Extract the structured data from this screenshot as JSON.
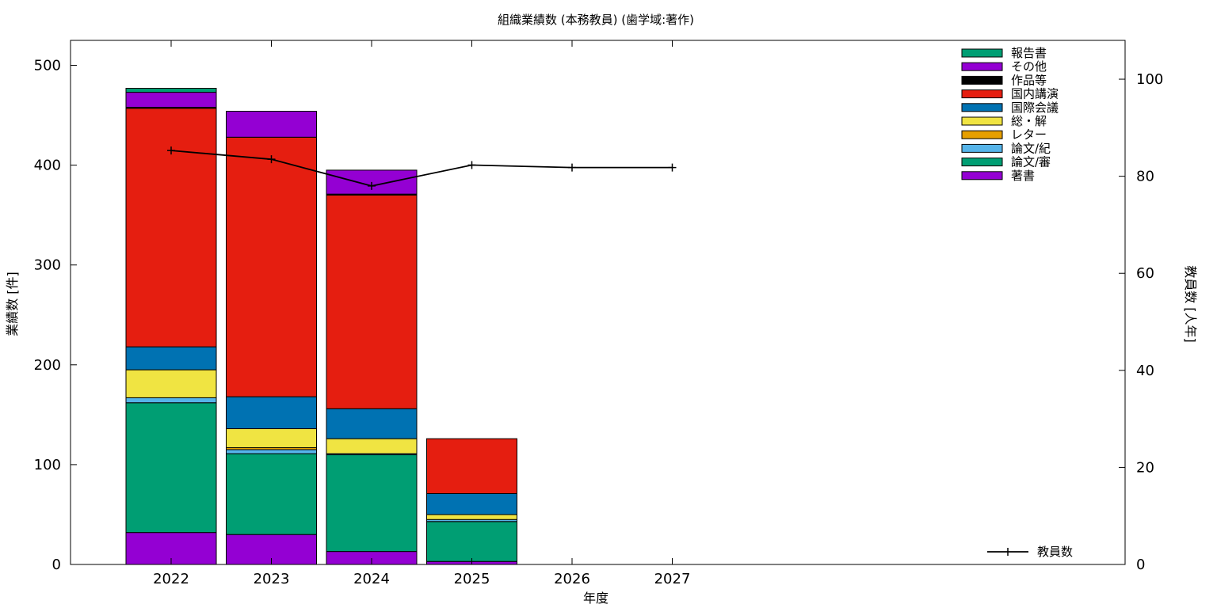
{
  "chart_data": {
    "type": "bar",
    "title": "組織業績数 (本務教員) (歯学域:著作)",
    "xlabel": "年度",
    "ylabel": "業績数 [件]",
    "y2label": "教員数 [人年]",
    "categories": [
      "2022",
      "2023",
      "2024",
      "2025",
      "2026",
      "2027"
    ],
    "ylim": [
      0,
      525
    ],
    "y2lim": [
      0,
      108
    ],
    "yticks": [
      0,
      100,
      200,
      300,
      400,
      500
    ],
    "y2ticks": [
      0,
      20,
      40,
      60,
      80,
      100
    ],
    "stacked": true,
    "series": [
      {
        "name": "著書",
        "color": "#9400d3",
        "values": [
          32,
          30,
          13,
          3,
          null,
          null
        ]
      },
      {
        "name": "論文/審",
        "color": "#009e73",
        "values": [
          130,
          81,
          97,
          40,
          null,
          null
        ]
      },
      {
        "name": "論文/紀",
        "color": "#56b4e9",
        "values": [
          5,
          4,
          1,
          2,
          null,
          null
        ]
      },
      {
        "name": "レター",
        "color": "#e69f00",
        "values": [
          0,
          2,
          0,
          0,
          null,
          null
        ]
      },
      {
        "name": "総・解",
        "color": "#f0e442",
        "values": [
          28,
          19,
          15,
          5,
          null,
          null
        ]
      },
      {
        "name": "国際会議",
        "color": "#0072b2",
        "values": [
          23,
          32,
          30,
          21,
          null,
          null
        ]
      },
      {
        "name": "国内講演",
        "color": "#e51e10",
        "values": [
          239,
          260,
          214,
          55,
          null,
          null
        ]
      },
      {
        "name": "作品等",
        "color": "#000000",
        "values": [
          1,
          0,
          1,
          0,
          null,
          null
        ]
      },
      {
        "name": "その他",
        "color": "#9400d3",
        "values": [
          15,
          26,
          24,
          0,
          null,
          null
        ]
      },
      {
        "name": "報告書",
        "color": "#009e73",
        "values": [
          4,
          0,
          0,
          0,
          null,
          null
        ]
      }
    ],
    "line_series": {
      "name": "教員数",
      "axis": "right",
      "color": "#000000",
      "values": [
        85.3,
        83.5,
        78.0,
        82.3,
        81.8,
        81.8
      ]
    },
    "legend_position": "top-right",
    "grid": false
  }
}
